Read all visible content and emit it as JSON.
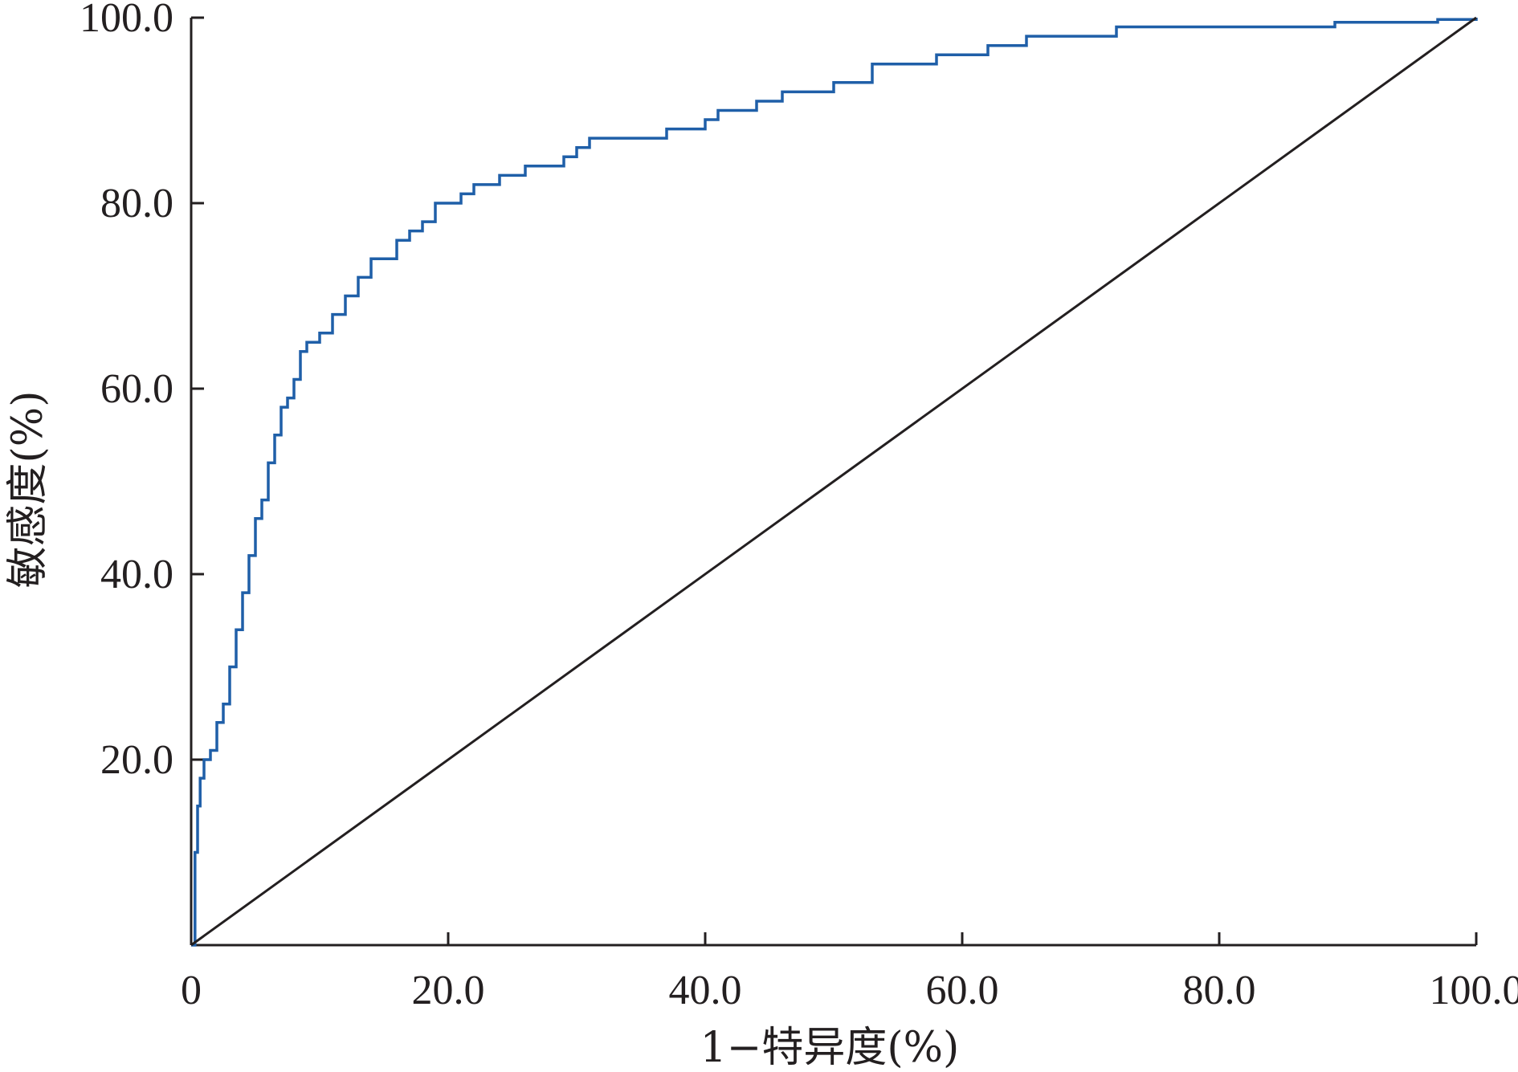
{
  "chart_data": {
    "type": "line",
    "title": "",
    "xlabel": "1−特异度(%)",
    "ylabel": "敏感度(%)",
    "xlim": [
      0,
      100
    ],
    "ylim": [
      0,
      100
    ],
    "x_ticks": [
      0,
      20,
      40,
      60,
      80,
      100
    ],
    "x_tick_labels": [
      "0",
      "20.0",
      "40.0",
      "60.0",
      "80.0",
      "100.0"
    ],
    "y_ticks": [
      20,
      40,
      60,
      80,
      100
    ],
    "y_tick_labels": [
      "20.0",
      "40.0",
      "60.0",
      "80.0",
      "100.0"
    ],
    "grid": false,
    "legend": "none",
    "series": [
      {
        "color": "#1f5fa8",
        "style": "step",
        "x": [
          0,
          0.3,
          0.5,
          0.7,
          1.0,
          1.5,
          2.0,
          2.5,
          3.0,
          3.5,
          4.0,
          4.5,
          5.0,
          5.5,
          6.0,
          6.5,
          7.0,
          7.5,
          8.0,
          8.5,
          9.0,
          10.0,
          11.0,
          12.0,
          13.0,
          14.0,
          15.0,
          16.0,
          17.0,
          18.0,
          19.0,
          20.0,
          21.0,
          22.0,
          23.0,
          24.0,
          25.0,
          26.0,
          27.0,
          28.0,
          29.0,
          30.0,
          31.0,
          32.0,
          33.0,
          34.0,
          35.0,
          36.0,
          37.0,
          38.0,
          39.0,
          40.0,
          41.0,
          42.0,
          43.0,
          44.0,
          45.0,
          46.0,
          47.0,
          48.0,
          50.0,
          52.0,
          53.0,
          55.0,
          58.0,
          60.0,
          61.0,
          62.0,
          63.0,
          65.0,
          68.0,
          72.0,
          80.0,
          88.0,
          89.0,
          97.0,
          100.0
        ],
        "y": [
          0,
          10,
          15,
          18,
          20,
          21,
          24,
          26,
          30,
          34,
          38,
          42,
          46,
          48,
          52,
          55,
          58,
          59,
          61,
          64,
          65,
          66,
          68,
          70,
          72,
          74,
          74,
          76,
          77,
          78,
          80,
          80,
          81,
          82,
          82,
          83,
          83,
          84,
          84,
          84,
          85,
          86,
          87,
          87,
          87,
          87,
          87,
          87,
          88,
          88,
          88,
          89,
          90,
          90,
          90,
          91,
          91,
          92,
          92,
          92,
          93,
          93,
          95,
          95,
          96,
          96,
          96,
          97,
          97,
          98,
          98,
          99,
          99,
          99,
          99.5,
          99.8,
          100
        ]
      },
      {
        "color": "#231f20",
        "style": "line",
        "x": [
          0,
          100
        ],
        "y": [
          0,
          100
        ]
      }
    ]
  }
}
